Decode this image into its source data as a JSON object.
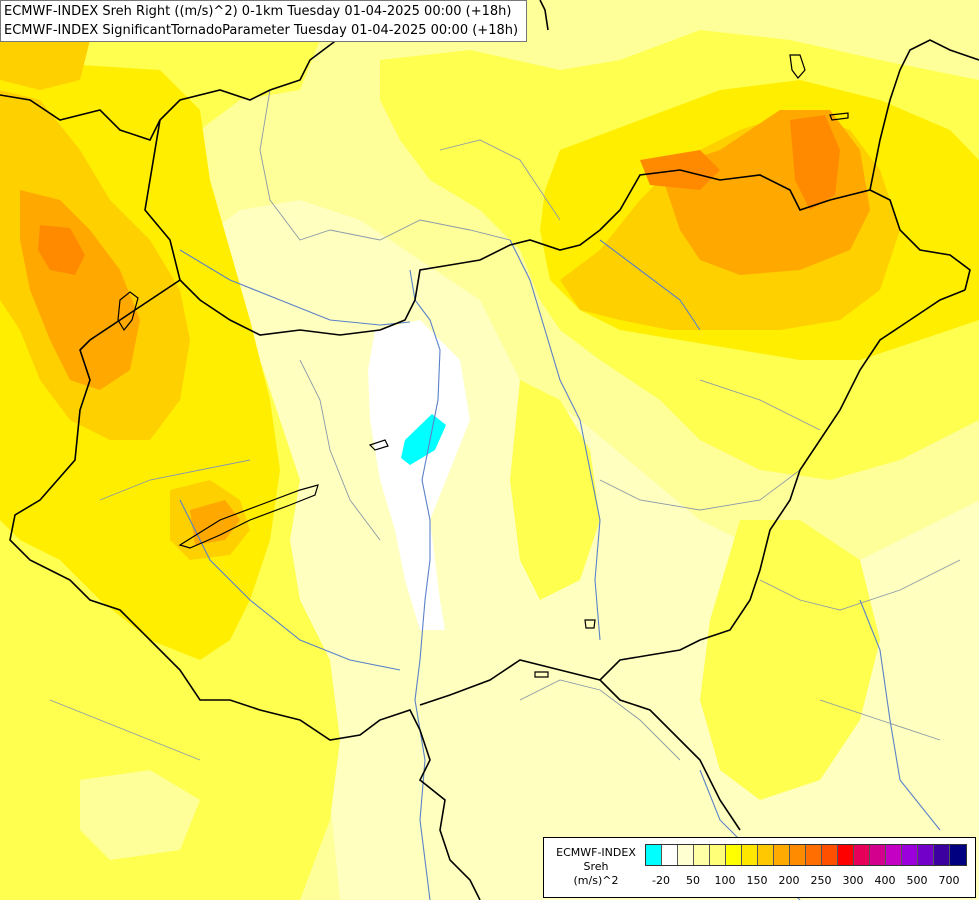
{
  "titles": {
    "line1": "ECMWF-INDEX Sreh Right ((m/s)^2) 0-1km Tuesday 01-04-2025 00:00 (+18h)",
    "line2": "ECMWF-INDEX SignificantTornadoParameter Tuesday 01-04-2025 00:00 (+18h)"
  },
  "legend": {
    "model": "ECMWF-INDEX",
    "field": "Sreh",
    "unit": "(m/s)^2",
    "colors": [
      "#00ffff",
      "#ffffff",
      "#ffffd2",
      "#ffffa5",
      "#ffff78",
      "#ffff00",
      "#ffe600",
      "#ffc800",
      "#ffaa00",
      "#ff8c00",
      "#ff6e00",
      "#ff5000",
      "#ff0000",
      "#e6005a",
      "#d2008c",
      "#c300c3",
      "#9b00dc",
      "#7300c8",
      "#3c00a0",
      "#000080"
    ],
    "ticks": [
      "-20",
      "50",
      "100",
      "150",
      "200",
      "250",
      "300",
      "400",
      "500",
      "700"
    ]
  },
  "map": {
    "palette": {
      "base": "#ffffc0",
      "light": "#ffff9a",
      "yellow1": "#ffff50",
      "yellow2": "#ffee00",
      "orange1": "#ffd000",
      "orange2": "#ffa800",
      "orange3": "#ff8a00",
      "white": "#ffffff",
      "cyan": "#00ffff",
      "border": "#000000",
      "river": "#5a82c8",
      "region": "#8a9aa8"
    }
  }
}
